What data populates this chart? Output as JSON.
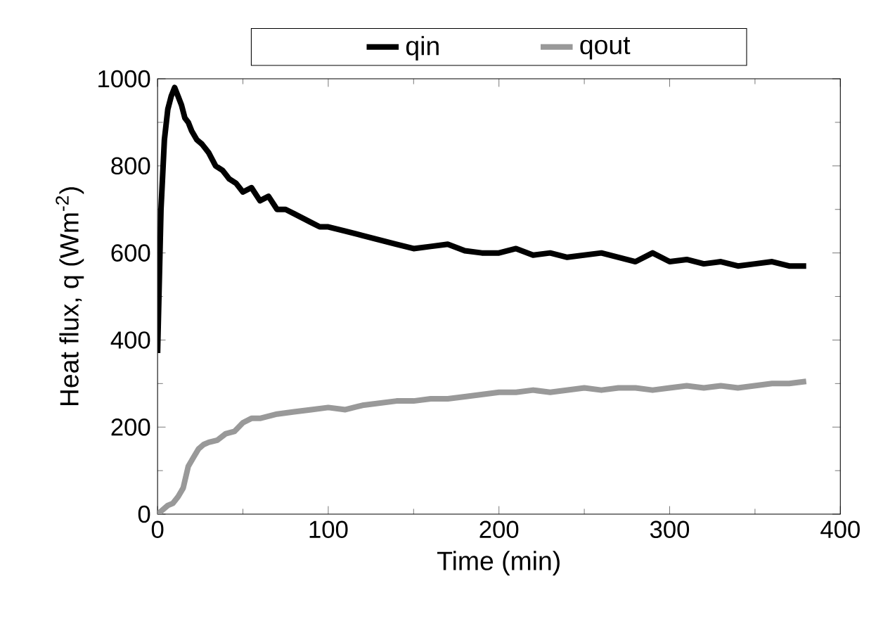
{
  "chart_data": {
    "type": "line",
    "xlabel": "Time (min)",
    "ylabel": "Heat flux, q (Wm$^{-2}$)",
    "xlim": [
      0,
      400
    ],
    "ylim": [
      0,
      1000
    ],
    "xticks": [
      0,
      100,
      200,
      300,
      400
    ],
    "yticks": [
      0,
      200,
      400,
      600,
      800,
      1000
    ],
    "legend": "top",
    "grid": false,
    "marker": "none",
    "line_style": "solid",
    "series": [
      {
        "name": "qin",
        "color": "#000000",
        "x": [
          0,
          2,
          4,
          6,
          8,
          10,
          12,
          14,
          16,
          18,
          20,
          23,
          26,
          30,
          34,
          38,
          42,
          46,
          50,
          55,
          60,
          65,
          70,
          75,
          80,
          85,
          90,
          95,
          100,
          110,
          120,
          130,
          140,
          150,
          160,
          170,
          180,
          190,
          200,
          210,
          220,
          230,
          240,
          250,
          260,
          270,
          280,
          290,
          300,
          310,
          320,
          330,
          340,
          350,
          360,
          370,
          380
        ],
        "values": [
          370,
          700,
          860,
          930,
          960,
          980,
          960,
          940,
          910,
          900,
          880,
          860,
          850,
          830,
          800,
          790,
          770,
          760,
          740,
          750,
          720,
          730,
          700,
          700,
          690,
          680,
          670,
          660,
          660,
          650,
          640,
          630,
          620,
          610,
          615,
          620,
          605,
          600,
          600,
          610,
          595,
          600,
          590,
          595,
          600,
          590,
          580,
          600,
          580,
          585,
          575,
          580,
          570,
          575,
          580,
          570,
          570
        ]
      },
      {
        "name": "qout",
        "color": "#999999",
        "x": [
          0,
          3,
          6,
          9,
          12,
          15,
          18,
          21,
          24,
          27,
          30,
          35,
          40,
          45,
          50,
          55,
          60,
          70,
          80,
          90,
          100,
          110,
          120,
          130,
          140,
          150,
          160,
          170,
          180,
          190,
          200,
          210,
          220,
          230,
          240,
          250,
          260,
          270,
          280,
          290,
          300,
          310,
          320,
          330,
          340,
          350,
          360,
          370,
          380
        ],
        "values": [
          0,
          10,
          20,
          25,
          40,
          60,
          110,
          130,
          150,
          160,
          165,
          170,
          185,
          190,
          210,
          220,
          220,
          230,
          235,
          240,
          245,
          240,
          250,
          255,
          260,
          260,
          265,
          265,
          270,
          275,
          280,
          280,
          285,
          280,
          285,
          290,
          285,
          290,
          290,
          285,
          290,
          295,
          290,
          295,
          290,
          295,
          300,
          300,
          305
        ]
      }
    ]
  }
}
